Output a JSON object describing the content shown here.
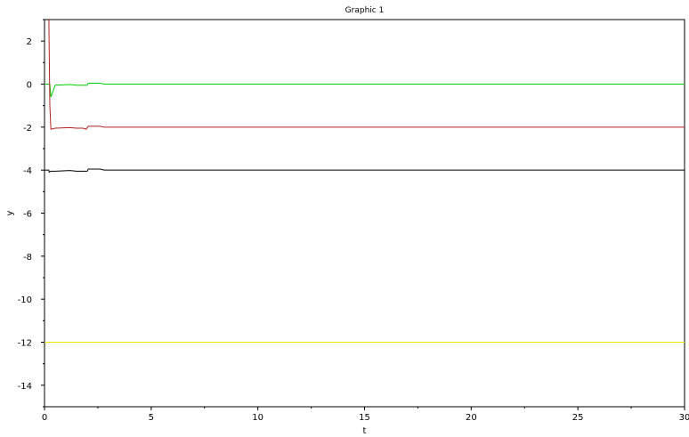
{
  "chart_data": {
    "type": "line",
    "title": "Graphic 1",
    "xlabel": "t",
    "ylabel": "y",
    "xlim": [
      0,
      30
    ],
    "ylim": [
      -15,
      3
    ],
    "xticks": [
      0,
      5,
      10,
      15,
      20,
      25,
      30
    ],
    "yticks": [
      2,
      0,
      -2,
      -4,
      -6,
      -8,
      -10,
      -12,
      -14
    ],
    "grid": false,
    "series": [
      {
        "color": "#00cc00",
        "x": [
          0,
          0.25,
          0.3,
          0.5,
          1.2,
          1.5,
          1.8,
          2.0,
          2.05,
          2.6,
          2.8,
          3.0,
          30
        ],
        "y": [
          0,
          0,
          -0.6,
          -0.05,
          -0.02,
          -0.05,
          -0.05,
          -0.05,
          0.04,
          0.04,
          0.0,
          0.0,
          0.0
        ]
      },
      {
        "color": "#b22222",
        "x": [
          0,
          0.2,
          0.22,
          0.25,
          0.3,
          0.5,
          1.2,
          1.5,
          1.8,
          1.95,
          2.05,
          2.6,
          2.8,
          3.0,
          30
        ],
        "y": [
          3.5,
          3.5,
          1.5,
          -1.0,
          -2.1,
          -2.05,
          -2.02,
          -2.05,
          -2.05,
          -2.1,
          -1.96,
          -1.96,
          -2.0,
          -2.0,
          -2.0
        ]
      },
      {
        "color": "#000000",
        "x": [
          0,
          0.2,
          0.22,
          0.3,
          0.5,
          1.2,
          1.5,
          1.8,
          2.0,
          2.05,
          2.6,
          2.8,
          3.0,
          30
        ],
        "y": [
          -4.0,
          -4.0,
          -4.1,
          -4.05,
          -4.05,
          -4.02,
          -4.05,
          -4.05,
          -4.05,
          -3.95,
          -3.95,
          -4.0,
          -4.0,
          -4.0
        ]
      },
      {
        "color": "#e8e800",
        "x": [
          0,
          30
        ],
        "y": [
          -12,
          -12
        ]
      }
    ]
  }
}
